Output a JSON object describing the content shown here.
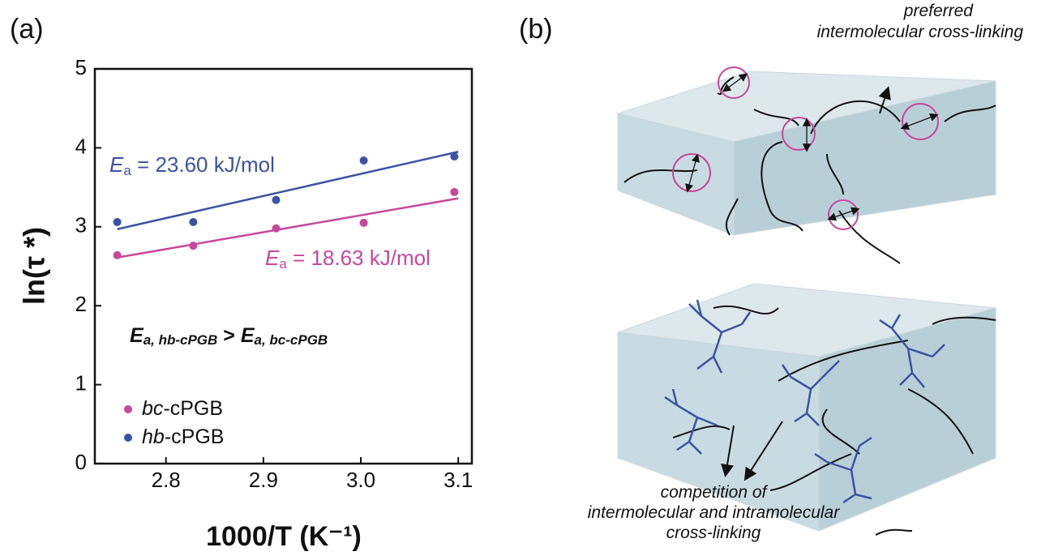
{
  "chart_data": {
    "type": "scatter",
    "panel_label": "(a)",
    "x_label": "1000/T (K⁻¹)",
    "y_label": "ln(τ *)",
    "xlim": [
      2.727,
      3.114
    ],
    "xticks": [
      2.8,
      2.9,
      {
        "value": 3,
        "label": "3.0"
      },
      3.1
    ],
    "ylim": [
      0,
      5
    ],
    "yticks": [
      0,
      1,
      2,
      3,
      4,
      5
    ],
    "series": [
      {
        "name": "bc-cPGB",
        "color": "#c8479b",
        "x": [
          2.75,
          2.828,
          2.913,
          3.003,
          3.096
        ],
        "values": [
          2.64,
          2.76,
          2.98,
          3.05,
          3.44
        ],
        "fit": {
          "x": [
            2.75,
            3.1
          ],
          "values": [
            2.61,
            3.36
          ]
        },
        "annotation": {
          "symbol": "E",
          "subscript": "a",
          "text": " = 18.63 kJ/mol"
        }
      },
      {
        "name": "hb-cPGB",
        "color": "#3a53a4",
        "x": [
          2.75,
          2.828,
          2.913,
          3.003,
          3.096
        ],
        "values": [
          3.06,
          3.06,
          3.34,
          3.84,
          3.89
        ],
        "fit": {
          "x": [
            2.75,
            3.1
          ],
          "values": [
            2.97,
            3.95
          ]
        },
        "annotation": {
          "symbol": "E",
          "subscript": "a",
          "text": " = 23.60 kJ/mol"
        }
      }
    ],
    "comparison": {
      "lhs": {
        "symbol": "E",
        "subscript": "a, hb-cPGB"
      },
      "operator": " > ",
      "rhs": {
        "symbol": "E",
        "subscript": "a, bc-cPGB"
      }
    }
  },
  "panel_b": {
    "panel_label": "(b)",
    "top_caption": [
      "preferred",
      "intermolecular cross-linking"
    ],
    "bottom_caption": [
      "competition of",
      "intermolecular and intramolecular",
      "cross-linking"
    ]
  }
}
